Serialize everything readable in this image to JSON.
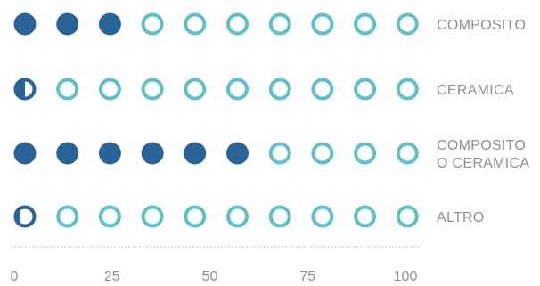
{
  "chart_data": {
    "type": "pictograph",
    "xlim": [
      0,
      100
    ],
    "icons_per_row": 10,
    "units_per_icon": 10,
    "x_ticks": [
      "0",
      "25",
      "50",
      "75",
      "100"
    ],
    "x_tick_values": [
      0,
      25,
      50,
      75,
      100
    ],
    "rows": [
      {
        "label_lines": [
          "COMPOSITO"
        ],
        "value": 30
      },
      {
        "label_lines": [
          "CERAMICA"
        ],
        "value": 5
      },
      {
        "label_lines": [
          "COMPOSITO",
          "O CERAMICA"
        ],
        "value": 60
      },
      {
        "label_lines": [
          "ALTRO"
        ],
        "value": 3
      }
    ],
    "colors": {
      "filled": "#2A6496",
      "empty_ring": "#5FC0C5",
      "label": "#8A8F96",
      "baseline": "#BDBDBD"
    },
    "grid": false
  }
}
